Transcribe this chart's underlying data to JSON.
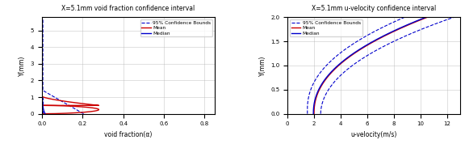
{
  "left_title": "X=5.1mm void fraction confidence interval",
  "left_xlabel": "void fraction(α)",
  "left_ylabel": "Y(mm)",
  "left_xlim": [
    0,
    0.85
  ],
  "left_ylim": [
    0,
    5.8
  ],
  "left_xticks": [
    0,
    0.2,
    0.4,
    0.6,
    0.8
  ],
  "left_yticks": [
    0,
    1,
    2,
    3,
    4,
    5
  ],
  "right_title": "X=5.1mm u-velocity confidence interval",
  "right_xlabel": "u-velocity(m/s)",
  "right_ylabel": "Y(mm)",
  "right_xlim": [
    0,
    13
  ],
  "right_ylim": [
    0,
    2.0
  ],
  "right_xticks": [
    0,
    2,
    4,
    6,
    8,
    10,
    12
  ],
  "right_yticks": [
    0,
    0.5,
    1.0,
    1.5,
    2.0
  ],
  "mean_color": "#cc0000",
  "median_color": "#0000cc",
  "ci_color": "#0000cc",
  "legend_entries": [
    "Mean",
    "Median",
    "95% Confidence Bounds"
  ]
}
